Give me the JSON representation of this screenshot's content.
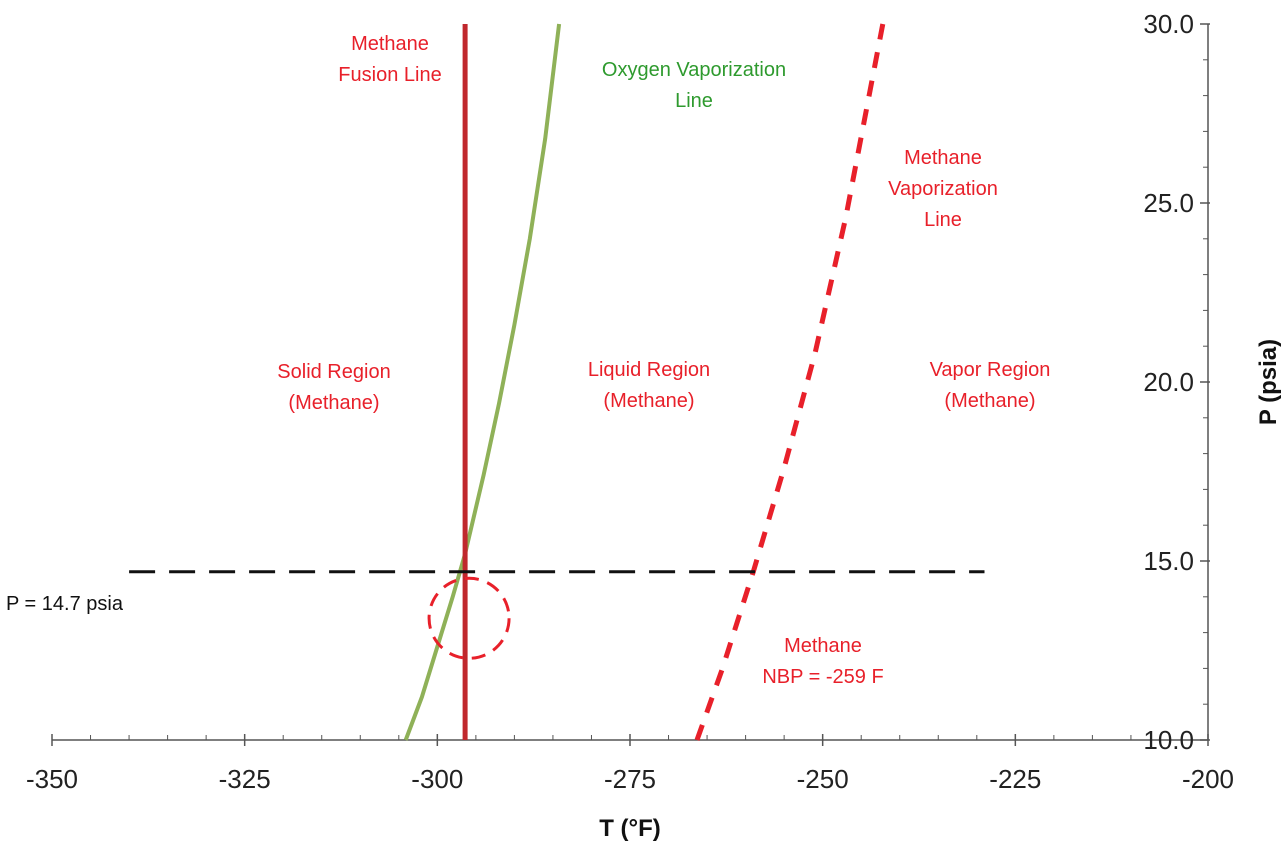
{
  "chart_data": {
    "type": "line",
    "title": "",
    "xlabel": "T (°F)",
    "ylabel": "P (psia)",
    "xlim": [
      -350,
      -200
    ],
    "ylim": [
      10,
      30
    ],
    "x_ticks": [
      -350,
      -325,
      -300,
      -275,
      -250,
      -225,
      -200
    ],
    "x_tick_labels": [
      "-350",
      "-325",
      "-300",
      "-275",
      "-250",
      "-225",
      "-200"
    ],
    "y_ticks": [
      10,
      15,
      20,
      25,
      30
    ],
    "y_tick_labels": [
      "10.0",
      "15.0",
      "20.0",
      "25.0",
      "30.0"
    ],
    "y_axis_side": "right",
    "grid": false,
    "series": [
      {
        "id": "methane_fusion",
        "style": "solid",
        "color": "#c0282d",
        "x": [
          -296.4,
          -296.4
        ],
        "y": [
          10,
          30
        ]
      },
      {
        "id": "oxygen_vaporization",
        "style": "solid",
        "color": "#8fb158",
        "x": [
          -304.1,
          -302,
          -300,
          -298,
          -296.4,
          -294,
          -292,
          -290,
          -288,
          -286,
          -284.2
        ],
        "y": [
          10.0,
          11.2,
          12.6,
          14.0,
          15.2,
          17.4,
          19.4,
          21.6,
          24.0,
          26.8,
          30.0
        ]
      },
      {
        "id": "methane_vaporization",
        "style": "dashed",
        "color": "#e8202a",
        "x": [
          -266.3,
          -263,
          -259,
          -255,
          -251,
          -247,
          -242.2
        ],
        "y": [
          10.0,
          12.0,
          14.7,
          17.6,
          20.8,
          24.6,
          30.0
        ]
      },
      {
        "id": "p_14_7_line",
        "style": "dashed",
        "color": "#111111",
        "x": [
          -340,
          -229
        ],
        "y": [
          14.7,
          14.7
        ]
      }
    ],
    "highlight_circle": {
      "x": -296.4,
      "y": 13.4,
      "color": "#e8202a",
      "style": "dashed"
    },
    "annotations": [
      {
        "id": "methane-fusion-line",
        "lines": [
          "Methane",
          "Fusion Line"
        ],
        "color": "#e8202a"
      },
      {
        "id": "oxygen-vaporization-line",
        "lines": [
          "Oxygen Vaporization",
          "Line"
        ],
        "color": "#2e9a2e"
      },
      {
        "id": "methane-vaporization-line",
        "lines": [
          "Methane",
          "Vaporization",
          "Line"
        ],
        "color": "#e8202a"
      },
      {
        "id": "solid-region",
        "lines": [
          "Solid Region",
          "(Methane)"
        ],
        "color": "#e8202a"
      },
      {
        "id": "liquid-region",
        "lines": [
          "Liquid Region",
          "(Methane)"
        ],
        "color": "#e8202a"
      },
      {
        "id": "vapor-region",
        "lines": [
          "Vapor Region",
          "(Methane)"
        ],
        "color": "#e8202a"
      },
      {
        "id": "methane-nbp",
        "lines": [
          "Methane",
          "NBP = -259 F"
        ],
        "color": "#e8202a"
      },
      {
        "id": "pressure-label",
        "lines": [
          "P = 14.7 psia"
        ],
        "color": "#111111"
      }
    ]
  }
}
